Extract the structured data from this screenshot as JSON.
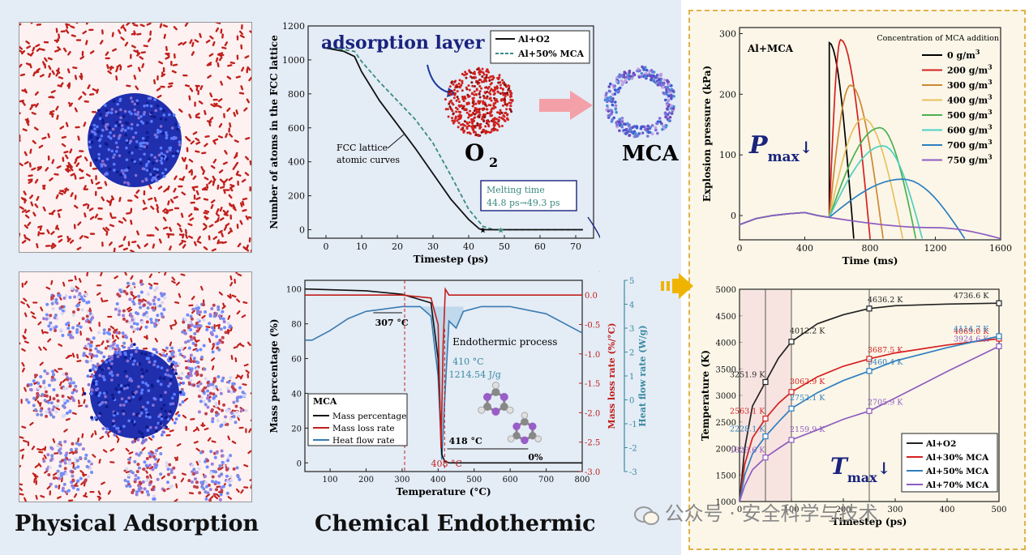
{
  "labels": {
    "physical": "Physical Adsorption",
    "chemical": "Chemical Endothermic",
    "adsorption_layer": "adsorption layer",
    "o2": "O",
    "o2_sub": "2",
    "mca": "MCA"
  },
  "watermark": "公众号 · 安全科学与技术",
  "colors": {
    "accent_gold": "#f0b400",
    "pink_arrow": "#f4a0a8",
    "navy": "#1a237e",
    "oxygen": "#c0201c",
    "aluminum": "#1f2fae"
  },
  "chart_data": [
    {
      "type": "line",
      "xlabel": "Timestep (ps)",
      "ylabel": "Number of atoms in the FCC lattice",
      "xlim": [
        -5,
        75
      ],
      "ylim": [
        -50,
        1200
      ],
      "xticks": [
        0,
        10,
        20,
        30,
        40,
        50,
        60,
        70
      ],
      "yticks": [
        0,
        200,
        400,
        600,
        800,
        1000,
        1200
      ],
      "legend": [
        "Al+O2",
        "Al+50% MCA"
      ],
      "annotation_curve": "FCC lattice atomic curves",
      "melting_box": [
        "Melting time",
        "44.8 ps→49.3 ps"
      ],
      "series": [
        {
          "name": "Al+O2",
          "x": [
            0,
            5,
            8,
            10,
            15,
            20,
            25,
            30,
            35,
            40,
            43,
            45,
            50,
            60,
            72
          ],
          "y": [
            1070,
            1050,
            1020,
            930,
            760,
            620,
            480,
            330,
            180,
            60,
            5,
            0,
            0,
            0,
            0
          ]
        },
        {
          "name": "Al+50% MCA",
          "x": [
            0,
            5,
            8,
            10,
            15,
            20,
            25,
            30,
            35,
            40,
            44,
            47,
            50,
            60,
            72
          ],
          "y": [
            1070,
            1060,
            1050,
            990,
            870,
            760,
            650,
            510,
            320,
            120,
            20,
            0,
            0,
            0,
            0
          ]
        }
      ]
    },
    {
      "type": "line",
      "title": "MCA",
      "xlabel": "Temperature (°C)",
      "ylabel": "Mass percentage (%)",
      "ylabel2": "Mass loss rate (%/°C)",
      "ylabel3": "Heat flow rate (W/g)",
      "xlim": [
        30,
        800
      ],
      "ylim": [
        -5,
        105
      ],
      "xticks": [
        100,
        200,
        300,
        400,
        500,
        600,
        700,
        800
      ],
      "yticks": [
        0,
        20,
        40,
        60,
        80,
        100
      ],
      "y2ticks": [
        "0.0",
        "-0.5",
        "-1.0",
        "-1.5",
        "-2.0",
        "-2.5",
        "-3.0"
      ],
      "y3ticks": [
        "5",
        "4",
        "3",
        "2",
        "1",
        "0",
        "-1",
        "-2",
        "-3"
      ],
      "legend": [
        "Mass percentage",
        "Mass loss rate",
        "Heat flow rate"
      ],
      "annotations": {
        "t307": "307 °C",
        "t408": "408 °C",
        "t418": "418 °C",
        "endo": "Endothermic process",
        "t410": "410 °C",
        "heat": "1214.54 J/g",
        "zero": "0%"
      },
      "series": [
        {
          "name": "Mass percentage",
          "x": [
            30,
            200,
            300,
            380,
            400,
            410,
            418,
            430,
            500,
            600,
            800
          ],
          "y": [
            100,
            99,
            97,
            92,
            60,
            5,
            1,
            0,
            0,
            0,
            0
          ]
        },
        {
          "name": "Mass loss rate",
          "x": [
            30,
            300,
            380,
            400,
            408,
            414,
            420,
            430,
            500,
            800
          ],
          "y": [
            0,
            0,
            -0.05,
            -0.5,
            -2.6,
            -0.8,
            0.1,
            0,
            0,
            0
          ]
        },
        {
          "name": "Heat flow rate",
          "x": [
            30,
            50,
            100,
            150,
            200,
            250,
            300,
            350,
            380,
            400,
            410,
            420,
            430,
            450,
            470,
            520,
            600,
            700,
            800
          ],
          "y": [
            2.5,
            2.5,
            2.9,
            3.4,
            3.7,
            3.8,
            3.9,
            3.9,
            3.5,
            1.0,
            -2.5,
            0.5,
            3.3,
            3.0,
            3.7,
            3.9,
            3.9,
            3.6,
            2.8
          ]
        }
      ]
    },
    {
      "type": "line",
      "title": "Al+MCA",
      "legend_title": "Concentration of MCA addition",
      "xlabel": "Time (ms)",
      "ylabel": "Explosion pressure (kPa)",
      "xlim": [
        0,
        1600
      ],
      "ylim": [
        -40,
        310
      ],
      "xticks": [
        0,
        400,
        800,
        1200,
        1600
      ],
      "yticks": [
        0,
        100,
        200,
        300
      ],
      "annotation": "P",
      "annotation_sub": "max",
      "arrow_glyph": "↓",
      "series": [
        {
          "name": "0 g/m3",
          "color": "#000000",
          "peak_x": 550,
          "peak_y": 285,
          "end_x": 700
        },
        {
          "name": "200 g/m3",
          "color": "#d62020",
          "peak_x": 620,
          "peak_y": 290,
          "end_x": 800
        },
        {
          "name": "300 g/m3",
          "color": "#cc8833",
          "peak_x": 680,
          "peak_y": 215,
          "end_x": 880
        },
        {
          "name": "400 g/m3",
          "color": "#e8c060",
          "peak_x": 760,
          "peak_y": 160,
          "end_x": 1000
        },
        {
          "name": "500 g/m3",
          "color": "#4caf50",
          "peak_x": 860,
          "peak_y": 145,
          "end_x": 1080
        },
        {
          "name": "600 g/m3",
          "color": "#4fd0c0",
          "peak_x": 880,
          "peak_y": 115,
          "end_x": 1120
        },
        {
          "name": "700 g/m3",
          "color": "#2f7fbf",
          "peak_x": 1000,
          "peak_y": 60,
          "end_x": 1380
        },
        {
          "name": "750 g/m3",
          "color": "#8e5cc0",
          "peak_x": 1200,
          "peak_y": -20,
          "end_x": 1600
        }
      ]
    },
    {
      "type": "line",
      "xlabel": "Timestep (ps)",
      "ylabel": "Temperature (K)",
      "xlim": [
        0,
        500
      ],
      "ylim": [
        1000,
        5000
      ],
      "xticks": [
        0,
        100,
        200,
        300,
        400,
        500
      ],
      "yticks": [
        1000,
        1500,
        2000,
        2500,
        3000,
        3500,
        4000,
        4500,
        5000
      ],
      "annotation": "T",
      "annotation_sub": "max",
      "arrow_glyph": "↓",
      "legend": [
        "Al+O2",
        "Al+30% MCA",
        "Al+50% MCA",
        "Al+70% MCA"
      ],
      "series": [
        {
          "name": "Al+O2",
          "color": "#222222",
          "x": [
            0,
            10,
            25,
            50,
            75,
            100,
            150,
            200,
            250,
            300,
            400,
            500
          ],
          "y": [
            1000,
            2000,
            2800,
            3252,
            3700,
            4012,
            4350,
            4520,
            4636,
            4690,
            4720,
            4737
          ],
          "labels": [
            "3251.9 K",
            "4012.2 K",
            "4636.2 K",
            "4736.6 K"
          ]
        },
        {
          "name": "Al+30% MCA",
          "color": "#d62020",
          "x": [
            0,
            10,
            25,
            50,
            75,
            100,
            150,
            200,
            250,
            300,
            400,
            500
          ],
          "y": [
            1000,
            1700,
            2200,
            2563,
            2850,
            3064,
            3350,
            3550,
            3688,
            3800,
            3950,
            4069
          ],
          "labels": [
            "2563.1 K",
            "3063.9 K",
            "3687.5 K",
            "4069.0 K"
          ]
        },
        {
          "name": "Al+50% MCA",
          "color": "#2f7fbf",
          "x": [
            0,
            10,
            25,
            50,
            75,
            100,
            150,
            200,
            250,
            300,
            400,
            500
          ],
          "y": [
            1000,
            1500,
            1900,
            2228,
            2500,
            2752,
            3050,
            3280,
            3460,
            3650,
            3900,
            4115
          ],
          "labels": [
            "2228.1 K",
            "2752.1 K",
            "3460.4 K",
            "4114.7 K"
          ]
        },
        {
          "name": "Al+70% MCA",
          "color": "#8e5cc0",
          "x": [
            0,
            10,
            25,
            50,
            75,
            100,
            150,
            200,
            250,
            300,
            400,
            500
          ],
          "y": [
            1000,
            1300,
            1600,
            1830,
            2000,
            2160,
            2350,
            2550,
            2706,
            2950,
            3450,
            3925
          ],
          "labels": [
            "1829.6 K",
            "2159.9 K",
            "2705.9 K",
            "3924.6 K"
          ]
        }
      ]
    }
  ]
}
